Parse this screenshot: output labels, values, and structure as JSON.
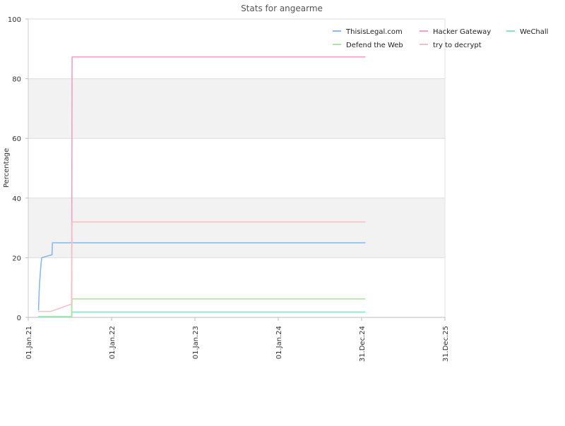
{
  "chart_data": {
    "type": "line",
    "title": "Stats for angearme",
    "ylabel": "Percentage",
    "xlabel": "",
    "ylim": [
      0,
      100
    ],
    "xlim": [
      "2021-01-01",
      "2025-12-31"
    ],
    "y_ticks": [
      "0",
      "20",
      "40",
      "60",
      "80",
      "100"
    ],
    "x_ticks": [
      {
        "label": "01.Jan.21",
        "date": "2021-01-01"
      },
      {
        "label": "01.Jan.22",
        "date": "2022-01-01"
      },
      {
        "label": "01.Jan.23",
        "date": "2023-01-01"
      },
      {
        "label": "01.Jan.24",
        "date": "2024-01-01"
      },
      {
        "label": "31.Dec.24",
        "date": "2024-12-31"
      },
      {
        "label": "31.Dec.25",
        "date": "2025-12-31"
      }
    ],
    "grid": true,
    "alternating_bands": true,
    "legend_position": "top-right",
    "series": [
      {
        "name": "ThisisLegal.com",
        "color": "#8ab8ec",
        "points": [
          [
            "2021-02-15",
            2.5
          ],
          [
            "2021-02-16",
            5
          ],
          [
            "2021-02-18",
            9
          ],
          [
            "2021-02-20",
            12
          ],
          [
            "2021-02-23",
            15
          ],
          [
            "2021-02-26",
            18
          ],
          [
            "2021-03-01",
            20
          ],
          [
            "2021-04-15",
            21
          ],
          [
            "2021-04-17",
            25
          ],
          [
            "2025-01-15",
            25
          ]
        ]
      },
      {
        "name": "Hacker Gateway",
        "color": "#f0a0c4",
        "points": [
          [
            "2021-07-10",
            0
          ],
          [
            "2021-07-12",
            87.3
          ],
          [
            "2025-01-15",
            87.3
          ]
        ]
      },
      {
        "name": "WeChall",
        "color": "#90e0c8",
        "points": [
          [
            "2021-02-15",
            0.3
          ],
          [
            "2021-07-10",
            0.3
          ],
          [
            "2021-07-12",
            1.8
          ],
          [
            "2025-01-15",
            1.8
          ]
        ]
      },
      {
        "name": "Defend the Web",
        "color": "#a8e8a0",
        "points": [
          [
            "2021-02-15",
            0.2
          ],
          [
            "2021-07-10",
            0.2
          ],
          [
            "2021-07-12",
            6.2
          ],
          [
            "2025-01-15",
            6.2
          ]
        ]
      },
      {
        "name": "try to decrypt",
        "color": "#f5c0c8",
        "points": [
          [
            "2021-02-15",
            2
          ],
          [
            "2021-04-10",
            2
          ],
          [
            "2021-07-10",
            4.5
          ],
          [
            "2021-07-12",
            32
          ],
          [
            "2025-01-15",
            32
          ]
        ]
      }
    ]
  }
}
